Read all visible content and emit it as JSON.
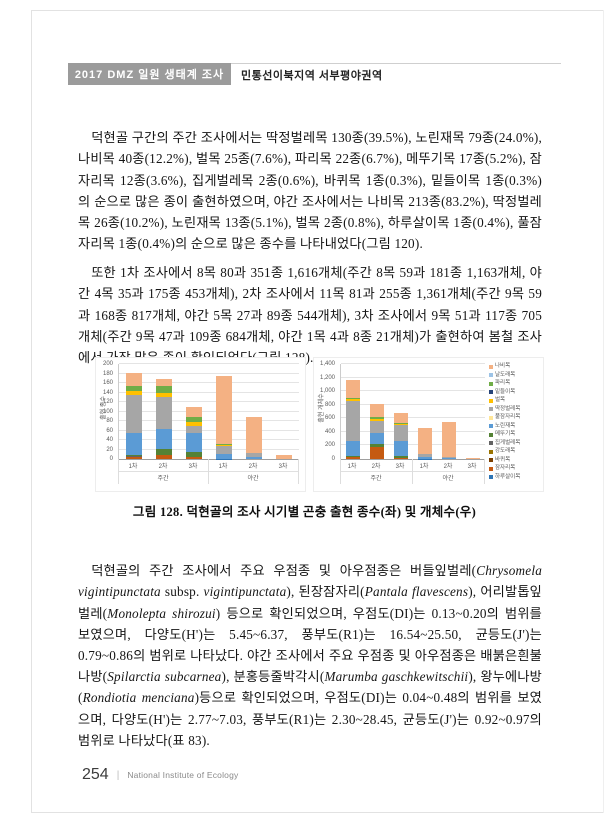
{
  "page": {
    "header": {
      "badge": "2017 DMZ 일원 생태계 조사",
      "section": "민통선이북지역 서부평야권역"
    },
    "paragraphs": {
      "p1": "덕현골 구간의 주간 조사에서는 딱정벌레목 130종(39.5%), 노린재목 79종(24.0%), 나비목 40종(12.2%), 벌목 25종(7.6%), 파리목 22종(6.7%), 메뚜기목 17종(5.2%), 잠자리목 12종(3.6%), 집게벌레목 2종(0.6%), 바퀴목 1종(0.3%), 밑들이목 1종(0.3%)의 순으로 많은 종이 출현하였으며, 야간 조사에서는 나비목 213종(83.2%), 딱정벌레목 26종(10.2%), 노린재목 13종(5.1%), 벌목 2종(0.8%), 하루살이목 1종(0.4%), 풀잠자리목 1종(0.4%)의 순으로 많은 종수를 나타내었다(그림 120).",
      "p2": "또한 1차 조사에서 8목 80과 351종 1,616개체(주간 8목 59과 181종 1,163개체, 야간 4목 35과 175종 453개체), 2차 조사에서 11목 81과 255종 1,361개체(주간 9목 59과 168종 817개체, 야간 5목 27과 89종 544개체), 3차 조사에서 9목 51과 117종 705개체(주간 9목 47과 109종 684개체, 야간 1목 4과 8종 21개체)가 출현하여 봄철 조사에서 가장 많은 종이 확인되었다(그림 128).",
      "p3_segments": [
        {
          "t": "덕현골의 주간 조사에서 주요 우점종 및 아우점종은 버들잎벌레("
        },
        {
          "t": "Chrysomela vigintipunctata",
          "i": true
        },
        {
          "t": " subsp. "
        },
        {
          "t": "vigintipunctata",
          "i": true
        },
        {
          "t": "), 된장잠자리("
        },
        {
          "t": "Pantala flavescens",
          "i": true
        },
        {
          "t": "), 어리발톱잎벌레("
        },
        {
          "t": "Monolepta shirozui",
          "i": true
        },
        {
          "t": ") 등으로 확인되었으며, 우점도(DI)는 0.13~0.20의 범위를 보였으며, 다양도(H')는 5.45~6.37, 풍부도(R1)는 16.54~25.50, 균등도(J')는 0.79~0.86의 범위로 나타났다. 야간 조사에서 주요 우점종 및 아우점종은 배붉은흰불나방("
        },
        {
          "t": "Spilarctia subcarnea",
          "i": true
        },
        {
          "t": "), 분홍등줄박각시("
        },
        {
          "t": "Marumba gaschkewitschii",
          "i": true
        },
        {
          "t": "), 왕누에나방("
        },
        {
          "t": "Rondiotia menciana",
          "i": true
        },
        {
          "t": ")등으로 확인되었으며, 우점도(DI)는 0.04~0.48의 범위를 보였으며, 다양도(H')는 2.77~7.03, 풍부도(R1)는 2.30~28.45, 균등도(J')는 0.92~0.97의 범위로 나타났다(표 83)."
        }
      ]
    },
    "figure_caption": "그림 128. 덕현골의 조사 시기별 곤충 출현 종수(좌) 및 개체수(우)",
    "footer": {
      "page_number": "254",
      "divider": "|",
      "org": "National Institute of Ecology"
    }
  },
  "chart_data": [
    {
      "type": "bar",
      "stacked": true,
      "title": "",
      "xlabel": "",
      "ylabel": "출현 종수",
      "ymax": 200,
      "yticks": [
        "0",
        "20",
        "40",
        "60",
        "80",
        "100",
        "120",
        "140",
        "160",
        "180",
        "200"
      ],
      "grid": true,
      "legend": false,
      "groups": [
        {
          "label": "주간",
          "span": 3
        },
        {
          "label": "야간",
          "span": 3
        }
      ],
      "categories": [
        "1차",
        "2차",
        "3차",
        "1차",
        "2차",
        "3차"
      ],
      "totals": [
        181,
        168,
        109,
        175,
        89,
        8
      ],
      "series": [
        {
          "name": "하루살이목",
          "color": "#2e75b6",
          "values": [
            0,
            0,
            0,
            1,
            0,
            0
          ]
        },
        {
          "name": "잠자리목",
          "color": "#c55a11",
          "values": [
            4,
            8,
            5,
            0,
            0,
            0
          ]
        },
        {
          "name": "바퀴목",
          "color": "#7b3f00",
          "values": [
            1,
            0,
            0,
            0,
            0,
            0
          ]
        },
        {
          "name": "강도래목",
          "color": "#997300",
          "values": [
            0,
            0,
            0,
            0,
            0,
            0
          ]
        },
        {
          "name": "집게벌레목",
          "color": "#636363",
          "values": [
            1,
            1,
            0,
            0,
            0,
            0
          ]
        },
        {
          "name": "메뚜기목",
          "color": "#548235",
          "values": [
            2,
            12,
            10,
            0,
            0,
            0
          ]
        },
        {
          "name": "노린재목",
          "color": "#5b9bd5",
          "values": [
            46,
            43,
            40,
            9,
            4,
            0
          ]
        },
        {
          "name": "풀잠자리목",
          "color": "#ffe699",
          "values": [
            0,
            0,
            0,
            1,
            0,
            0
          ]
        },
        {
          "name": "딱정벌레목",
          "color": "#a6a6a6",
          "values": [
            81,
            66,
            15,
            17,
            8,
            0
          ]
        },
        {
          "name": "벌목",
          "color": "#ffc000",
          "values": [
            8,
            9,
            8,
            2,
            0,
            0
          ]
        },
        {
          "name": "밑들이목",
          "color": "#264478",
          "values": [
            1,
            0,
            0,
            0,
            0,
            0
          ]
        },
        {
          "name": "파리목",
          "color": "#70ad47",
          "values": [
            9,
            15,
            10,
            1,
            0,
            0
          ]
        },
        {
          "name": "날도래목",
          "color": "#9dc3e6",
          "values": [
            0,
            0,
            0,
            1,
            0,
            0
          ]
        },
        {
          "name": "나비목",
          "color": "#f4b183",
          "values": [
            28,
            14,
            21,
            143,
            77,
            8
          ]
        }
      ]
    },
    {
      "type": "bar",
      "stacked": true,
      "title": "",
      "xlabel": "",
      "ylabel": "출현 개체수",
      "ymax": 1400,
      "yticks": [
        "0",
        "200",
        "400",
        "600",
        "800",
        "1,000",
        "1,200",
        "1,400"
      ],
      "grid": true,
      "legend": true,
      "legend_position": "right",
      "groups": [
        {
          "label": "주간",
          "span": 3
        },
        {
          "label": "야간",
          "span": 3
        }
      ],
      "categories": [
        "1차",
        "2차",
        "3차",
        "1차",
        "2차",
        "3차"
      ],
      "totals": [
        1163,
        817,
        684,
        453,
        544,
        21
      ],
      "series": [
        {
          "name": "하루살이목",
          "color": "#2e75b6",
          "values": [
            0,
            0,
            0,
            2,
            0,
            0
          ]
        },
        {
          "name": "잠자리목",
          "color": "#c55a11",
          "values": [
            25,
            170,
            15,
            0,
            0,
            0
          ]
        },
        {
          "name": "바퀴목",
          "color": "#7b3f00",
          "values": [
            2,
            0,
            0,
            0,
            0,
            0
          ]
        },
        {
          "name": "강도래목",
          "color": "#997300",
          "values": [
            0,
            0,
            0,
            0,
            0,
            0
          ]
        },
        {
          "name": "집게벌레목",
          "color": "#636363",
          "values": [
            3,
            2,
            0,
            0,
            0,
            0
          ]
        },
        {
          "name": "메뚜기목",
          "color": "#548235",
          "values": [
            15,
            50,
            25,
            0,
            0,
            0
          ]
        },
        {
          "name": "노린재목",
          "color": "#5b9bd5",
          "values": [
            225,
            160,
            230,
            30,
            18,
            0
          ]
        },
        {
          "name": "풀잠자리목",
          "color": "#ffe699",
          "values": [
            0,
            0,
            0,
            2,
            0,
            0
          ]
        },
        {
          "name": "딱정벌레목",
          "color": "#a6a6a6",
          "values": [
            580,
            180,
            230,
            35,
            17,
            0
          ]
        },
        {
          "name": "벌목",
          "color": "#ffc000",
          "values": [
            30,
            30,
            20,
            4,
            0,
            0
          ]
        },
        {
          "name": "밑들이목",
          "color": "#264478",
          "values": [
            1,
            0,
            0,
            0,
            0,
            0
          ]
        },
        {
          "name": "파리목",
          "color": "#70ad47",
          "values": [
            25,
            28,
            15,
            2,
            0,
            0
          ]
        },
        {
          "name": "날도래목",
          "color": "#9dc3e6",
          "values": [
            0,
            0,
            0,
            2,
            0,
            0
          ]
        },
        {
          "name": "나비목",
          "color": "#f4b183",
          "values": [
            257,
            197,
            149,
            376,
            509,
            21
          ]
        }
      ]
    }
  ]
}
